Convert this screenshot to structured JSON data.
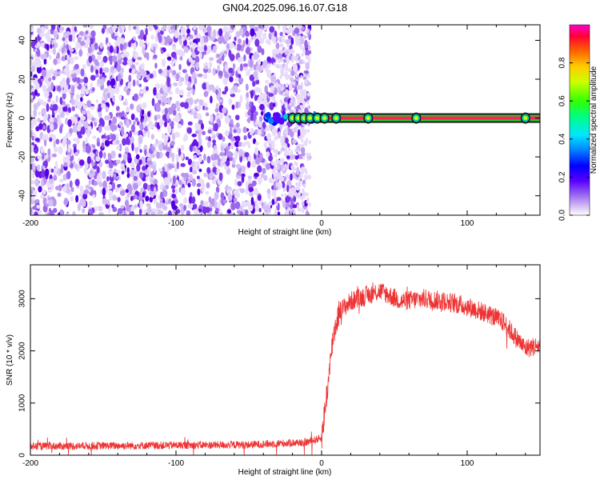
{
  "page_title": "GN04.2025.096.16.07.G18",
  "chart_data": [
    {
      "type": "heatmap",
      "title": "GN04.2025.096.16.07.G18",
      "xlabel": "Height of straight line (km)",
      "ylabel": "Frequency (Hz)",
      "xlim": [
        -200,
        150
      ],
      "ylim": [
        -50,
        48
      ],
      "xticks": [
        -200,
        -100,
        0,
        100
      ],
      "yticks": [
        -40,
        -20,
        0,
        20,
        40
      ],
      "colorbar": {
        "label": "Normalized spectral amplitude",
        "range": [
          0,
          1
        ],
        "ticks": [
          0.0,
          0.2,
          0.4,
          0.6,
          0.8
        ]
      },
      "features": {
        "noise_region_x": [
          -200,
          -8
        ],
        "tone_frequency_hz": 0,
        "tone_start_x": -38,
        "tone_peaks_x": [
          -20,
          -16,
          -12,
          -8,
          -3,
          2,
          10,
          32,
          65,
          140
        ]
      }
    },
    {
      "type": "line",
      "xlabel": "Height of straight line (km)",
      "ylabel": "SNR (10 * v/v)",
      "xlim": [
        -200,
        150
      ],
      "ylim": [
        0,
        3650
      ],
      "xticks": [
        -200,
        -100,
        0,
        100
      ],
      "yticks": [
        0,
        1000,
        2000,
        3000
      ],
      "color": "#ee3333",
      "x": [
        -200,
        -150,
        -100,
        -50,
        -10,
        0,
        2,
        5,
        8,
        12,
        20,
        30,
        40,
        55,
        70,
        85,
        100,
        115,
        125,
        135,
        140,
        150
      ],
      "y": [
        170,
        180,
        190,
        200,
        250,
        330,
        800,
        1500,
        2300,
        2750,
        2950,
        3050,
        3150,
        2950,
        3000,
        2950,
        2850,
        2700,
        2550,
        2200,
        2050,
        2100
      ]
    }
  ]
}
